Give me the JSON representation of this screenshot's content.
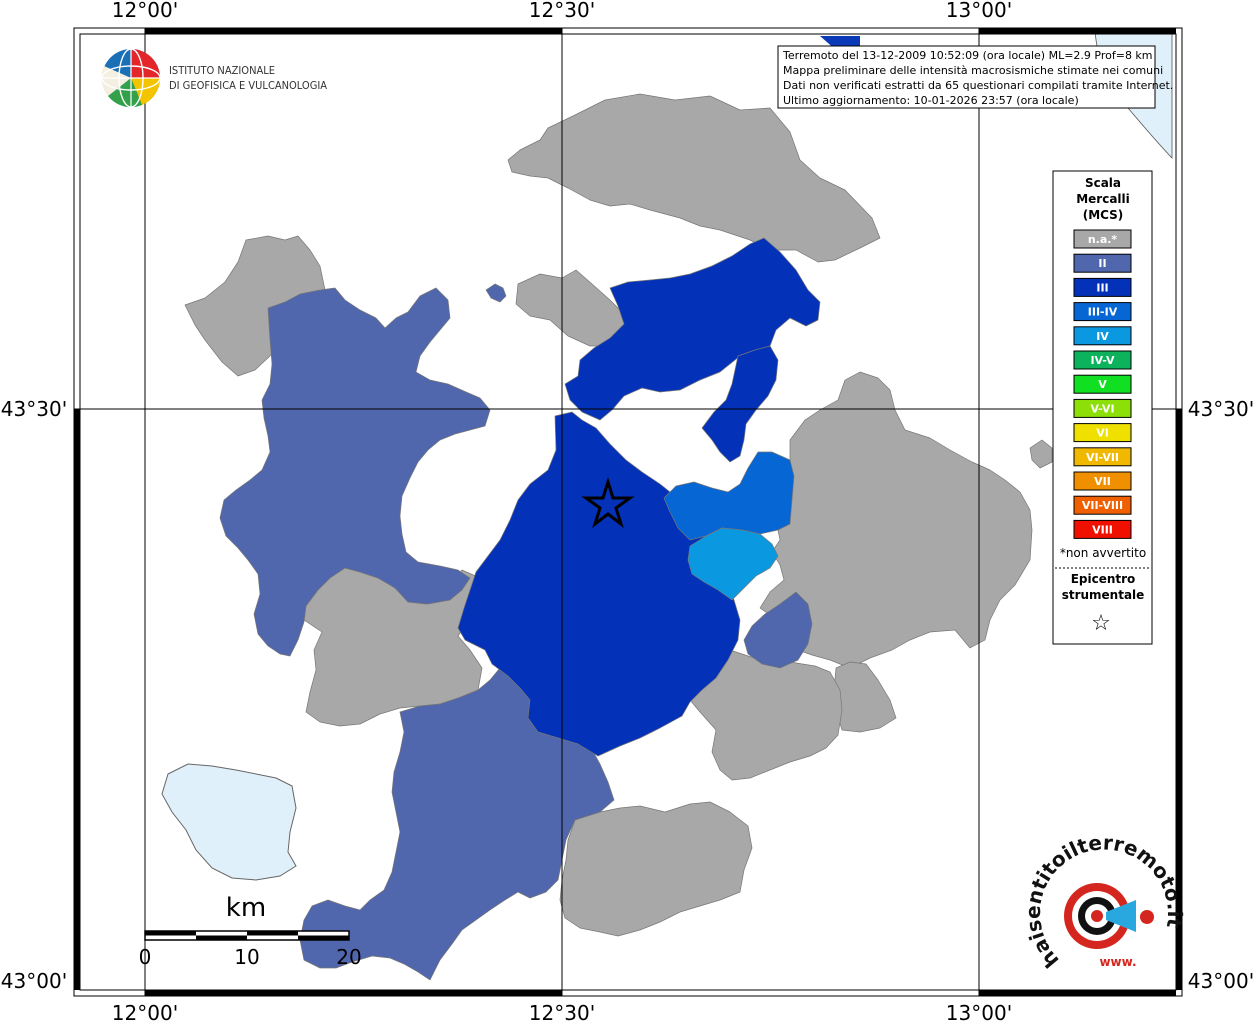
{
  "map": {
    "top_lon_labels": [
      "12°00'",
      "12°30'",
      "13°00'"
    ],
    "bottom_lon_labels": [
      "12°00'",
      "12°30'",
      "13°00'"
    ],
    "left_lat_labels": [
      "43°30'",
      "43°00'"
    ],
    "right_lat_labels": [
      "43°30'",
      "43°00'"
    ]
  },
  "logo": {
    "line1": "ISTITUTO NAZIONALE",
    "line2": "DI GEOFISICA E VULCANOLOGIA"
  },
  "info_box": {
    "lines": [
      "Terremoto del 13-12-2009 10:52:09 (ora locale) ML=2.9 Prof=8 km",
      "Mappa preliminare delle intensità macrosismiche stimate nei comuni",
      "Dati non verificati estratti da 65 questionari compilati tramite Internet.",
      "Ultimo aggiornamento: 10-01-2026 23:57 (ora locale)"
    ]
  },
  "legend": {
    "title_lines": [
      "Scala",
      "Mercalli",
      "(MCS)"
    ],
    "items": [
      {
        "label": "n.a.*",
        "color": "#a8a8a8"
      },
      {
        "label": "II",
        "color": "#5066ad"
      },
      {
        "label": "III",
        "color": "#0332b8"
      },
      {
        "label": "III-IV",
        "color": "#0666d4"
      },
      {
        "label": "IV",
        "color": "#0a99e0"
      },
      {
        "label": "IV-V",
        "color": "#0db35c"
      },
      {
        "label": "V",
        "color": "#11e022"
      },
      {
        "label": "V-VI",
        "color": "#8ce008"
      },
      {
        "label": "VI",
        "color": "#f0e000"
      },
      {
        "label": "VI-VII",
        "color": "#f0b800"
      },
      {
        "label": "VII",
        "color": "#f09000"
      },
      {
        "label": "VII-VIII",
        "color": "#f06000"
      },
      {
        "label": "VIII",
        "color": "#f01000"
      }
    ],
    "note": "*non avvertito",
    "epicenter_lines": [
      "Epicentro",
      "strumentale"
    ],
    "epicenter_symbol": "☆"
  },
  "scale_bar": {
    "unit": "km",
    "ticks": [
      "0",
      "10",
      "20"
    ]
  },
  "hai_sentito": {
    "text": "haisentitoilterremoto.it",
    "www": "www."
  },
  "colors": {
    "not_felt": "#a8a8a8",
    "intensity_II": "#5066ad",
    "intensity_III": "#0332b8",
    "intensity_III_IV": "#0666d4",
    "intensity_IV": "#0a99e0",
    "water": "#e0f0fb"
  }
}
